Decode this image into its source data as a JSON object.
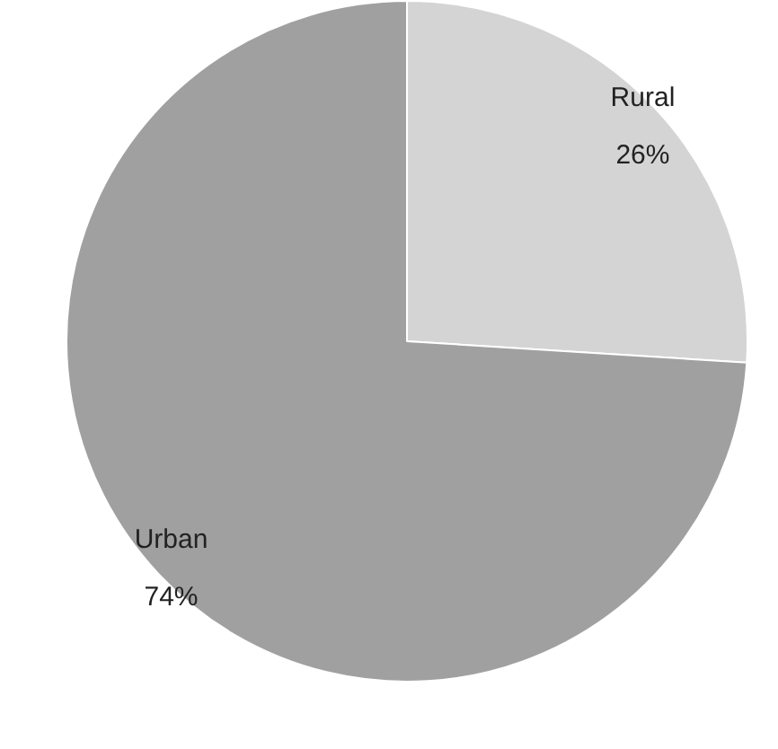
{
  "chart_data": {
    "type": "pie",
    "categories": [
      "Rural",
      "Urban"
    ],
    "values": [
      26,
      74
    ],
    "colors": [
      "#d4d4d4",
      "#a0a0a0"
    ],
    "value_labels": [
      "26%",
      "74%"
    ],
    "legend": false
  }
}
